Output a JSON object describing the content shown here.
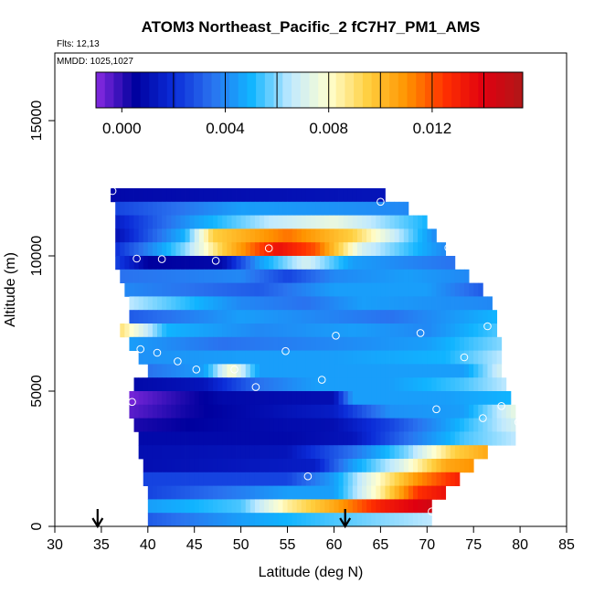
{
  "chart_data": {
    "type": "heatmap",
    "title": "ATOM3 Northeast_Pacific_2 fC7H7_PM1_AMS",
    "flights_label": "Flts: 12,13",
    "dates_label": "MMDD: 1025,1027",
    "xlabel": "Latitude (deg N)",
    "ylabel": "Altitude (m)",
    "xlim": [
      30,
      85
    ],
    "ylim": [
      0,
      17500
    ],
    "x_ticks": [
      30,
      35,
      40,
      45,
      50,
      55,
      60,
      65,
      70,
      75,
      80,
      85
    ],
    "y_ticks": [
      0,
      5000,
      10000,
      15000
    ],
    "colorbar": {
      "vmin": -0.001,
      "vmax": 0.0155,
      "ticks": [
        0.0,
        0.004,
        0.008,
        0.012
      ],
      "tick_labels": [
        "0.000",
        "0.004",
        "0.008",
        "0.012"
      ],
      "colors": [
        "#8a2be2",
        "#00009e",
        "#0b2cd8",
        "#2a72ef",
        "#10b4ff",
        "#bfe9ff",
        "#ffffd0",
        "#ffd040",
        "#ff9400",
        "#ff3000",
        "#e00010",
        "#b01818"
      ]
    },
    "value_grid": {
      "altitudes": [
        12250,
        11750,
        11250,
        10750,
        10250,
        9750,
        9250,
        8750,
        8250,
        7750,
        7250,
        6750,
        6250,
        5750,
        5250,
        4750,
        4250,
        3750,
        3250,
        2750,
        2250,
        1750,
        1250,
        750,
        250
      ],
      "row_lat_ranges": [
        [
          36,
          65.5
        ],
        [
          36.5,
          68
        ],
        [
          36.5,
          70
        ],
        [
          36.5,
          71
        ],
        [
          36.5,
          72
        ],
        [
          36.5,
          73
        ],
        [
          37,
          74.5
        ],
        [
          37.5,
          76
        ],
        [
          38,
          77
        ],
        [
          38,
          77.5
        ],
        [
          37,
          77.5
        ],
        [
          38,
          78
        ],
        [
          39,
          78
        ],
        [
          40,
          78
        ],
        [
          38.5,
          78.5
        ],
        [
          38,
          79
        ],
        [
          38,
          79.5
        ],
        [
          38.5,
          79.5
        ],
        [
          39,
          79.5
        ],
        [
          39,
          76.5
        ],
        [
          39.5,
          75
        ],
        [
          39.5,
          73.5
        ],
        [
          40,
          72
        ],
        [
          40,
          70.5
        ],
        [
          40,
          70.5
        ]
      ],
      "rows": [
        [
          [
            36,
            0.0008
          ],
          [
            65.5,
            0.0012
          ]
        ],
        [
          [
            36.5,
            0.0025
          ],
          [
            50,
            0.0045
          ],
          [
            68,
            0.004
          ]
        ],
        [
          [
            36.5,
            0.0015
          ],
          [
            45,
            0.0045
          ],
          [
            53,
            0.0065
          ],
          [
            60,
            0.0075
          ],
          [
            70,
            0.005
          ]
        ],
        [
          [
            36.5,
            0.001
          ],
          [
            44,
            0.005
          ],
          [
            47,
            0.0095
          ],
          [
            55,
            0.0115
          ],
          [
            62,
            0.0095
          ],
          [
            71,
            0.004
          ]
        ],
        [
          [
            36.5,
            0.002
          ],
          [
            44,
            0.006
          ],
          [
            48,
            0.0095
          ],
          [
            54,
            0.0135
          ],
          [
            58,
            0.012
          ],
          [
            63,
            0.007
          ],
          [
            72,
            0.004
          ]
        ],
        [
          [
            36.5,
            0.0025
          ],
          [
            40,
            0.0005
          ],
          [
            48,
            0.0008
          ],
          [
            52,
            0.0045
          ],
          [
            57,
            0.007
          ],
          [
            62,
            0.0045
          ],
          [
            73,
            0.0035
          ]
        ],
        [
          [
            37,
            0.0035
          ],
          [
            50,
            0.004
          ],
          [
            55,
            0.0025
          ],
          [
            60,
            0.004
          ],
          [
            68,
            0.0045
          ],
          [
            74.5,
            0.004
          ]
        ],
        [
          [
            37.5,
            0.004
          ],
          [
            52,
            0.003
          ],
          [
            60,
            0.0045
          ],
          [
            70,
            0.0045
          ],
          [
            76,
            0.003
          ]
        ],
        [
          [
            38,
            0.0065
          ],
          [
            50,
            0.004
          ],
          [
            57,
            0.0035
          ],
          [
            63,
            0.0045
          ],
          [
            77,
            0.004
          ]
        ],
        [
          [
            38,
            0.003
          ],
          [
            50,
            0.0045
          ],
          [
            58,
            0.004
          ],
          [
            66,
            0.0035
          ],
          [
            77.5,
            0.005
          ]
        ],
        [
          [
            37,
            0.009
          ],
          [
            42,
            0.005
          ],
          [
            52,
            0.004
          ],
          [
            62,
            0.0045
          ],
          [
            70,
            0.004
          ],
          [
            77.5,
            0.0055
          ]
        ],
        [
          [
            38,
            0.0045
          ],
          [
            48,
            0.0035
          ],
          [
            60,
            0.004
          ],
          [
            70,
            0.0045
          ],
          [
            78,
            0.006
          ]
        ],
        [
          [
            39,
            0.0042
          ],
          [
            50,
            0.0045
          ],
          [
            60,
            0.0045
          ],
          [
            72,
            0.005
          ],
          [
            78,
            0.0065
          ]
        ],
        [
          [
            40,
            0.0035
          ],
          [
            46,
            0.0045
          ],
          [
            49,
            0.008
          ],
          [
            52,
            0.0045
          ],
          [
            62,
            0.0045
          ],
          [
            74,
            0.0045
          ],
          [
            78,
            0.007
          ]
        ],
        [
          [
            38.5,
            0.0008
          ],
          [
            46,
            0.0012
          ],
          [
            52,
            0.0035
          ],
          [
            58,
            0.0045
          ],
          [
            66,
            0.0045
          ],
          [
            74,
            0.0055
          ],
          [
            78.5,
            0.0065
          ]
        ],
        [
          [
            38,
            -0.0008
          ],
          [
            44,
            0.0002
          ],
          [
            48,
            0.0008
          ],
          [
            60,
            0.001
          ],
          [
            62,
            0.0045
          ],
          [
            72,
            0.0045
          ],
          [
            79,
            0.005
          ]
        ],
        [
          [
            38,
            -0.0005
          ],
          [
            44,
            0.0003
          ],
          [
            50,
            0.0008
          ],
          [
            60,
            0.0015
          ],
          [
            66,
            0.0042
          ],
          [
            74,
            0.0045
          ],
          [
            79.5,
            0.0075
          ]
        ],
        [
          [
            38.5,
            0.0002
          ],
          [
            50,
            0.0008
          ],
          [
            60,
            0.001
          ],
          [
            66,
            0.0025
          ],
          [
            72,
            0.0045
          ],
          [
            79.5,
            0.007
          ]
        ],
        [
          [
            39,
            0.0008
          ],
          [
            55,
            0.0008
          ],
          [
            62,
            0.0012
          ],
          [
            68,
            0.0035
          ],
          [
            74,
            0.0055
          ],
          [
            79.5,
            0.0065
          ]
        ],
        [
          [
            39,
            0.001
          ],
          [
            55,
            0.0012
          ],
          [
            62,
            0.0035
          ],
          [
            68,
            0.006
          ],
          [
            73,
            0.0095
          ],
          [
            76.5,
            0.0105
          ]
        ],
        [
          [
            39.5,
            0.001
          ],
          [
            58,
            0.0015
          ],
          [
            62,
            0.0045
          ],
          [
            67,
            0.007
          ],
          [
            72,
            0.0105
          ],
          [
            75,
            0.011
          ]
        ],
        [
          [
            39.5,
            0.0025
          ],
          [
            55,
            0.0025
          ],
          [
            60,
            0.0045
          ],
          [
            64,
            0.0075
          ],
          [
            69,
            0.011
          ],
          [
            73.5,
            0.013
          ]
        ],
        [
          [
            40,
            0.0025
          ],
          [
            48,
            0.0035
          ],
          [
            55,
            0.0045
          ],
          [
            60,
            0.0045
          ],
          [
            65,
            0.0085
          ],
          [
            69,
            0.0125
          ],
          [
            72,
            0.0135
          ]
        ],
        [
          [
            40,
            0.0045
          ],
          [
            50,
            0.0055
          ],
          [
            55,
            0.0085
          ],
          [
            60,
            0.0105
          ],
          [
            65,
            0.013
          ],
          [
            70.5,
            0.0145
          ]
        ],
        [
          [
            40,
            0.003
          ],
          [
            50,
            0.0045
          ],
          [
            60,
            0.0055
          ],
          [
            70.5,
            0.0065
          ]
        ]
      ]
    },
    "observations": [
      {
        "lat": 36.2,
        "alt": 12400
      },
      {
        "lat": 65,
        "alt": 12000
      },
      {
        "lat": 72.3,
        "alt": 10300
      },
      {
        "lat": 53,
        "alt": 10280
      },
      {
        "lat": 38.8,
        "alt": 9900
      },
      {
        "lat": 41.5,
        "alt": 9880
      },
      {
        "lat": 47.3,
        "alt": 9820
      },
      {
        "lat": 76.5,
        "alt": 7400
      },
      {
        "lat": 69.3,
        "alt": 7150
      },
      {
        "lat": 60.2,
        "alt": 7050
      },
      {
        "lat": 39.2,
        "alt": 6550
      },
      {
        "lat": 41,
        "alt": 6420
      },
      {
        "lat": 54.8,
        "alt": 6480
      },
      {
        "lat": 74,
        "alt": 6250
      },
      {
        "lat": 43.2,
        "alt": 6100
      },
      {
        "lat": 45.2,
        "alt": 5800
      },
      {
        "lat": 49.3,
        "alt": 5800
      },
      {
        "lat": 58.7,
        "alt": 5420
      },
      {
        "lat": 51.6,
        "alt": 5150
      },
      {
        "lat": 38.3,
        "alt": 4600
      },
      {
        "lat": 78,
        "alt": 4450
      },
      {
        "lat": 71,
        "alt": 4330
      },
      {
        "lat": 76,
        "alt": 4000
      },
      {
        "lat": 79.8,
        "alt": 3850
      },
      {
        "lat": 57.2,
        "alt": 1850
      },
      {
        "lat": 70.5,
        "alt": 550
      }
    ],
    "markers": [
      {
        "lat": 34.6
      },
      {
        "lat": 61.2
      }
    ]
  }
}
